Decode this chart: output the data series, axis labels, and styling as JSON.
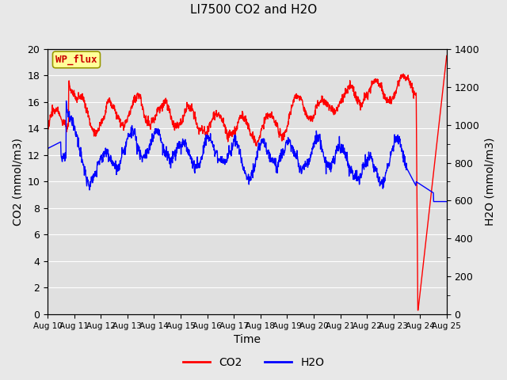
{
  "title": "LI7500 CO2 and H2O",
  "xlabel": "Time",
  "ylabel_left": "CO2 (mmol/m3)",
  "ylabel_right": "H2O (mmol/m3)",
  "ylim_left": [
    0,
    20
  ],
  "ylim_right": [
    0,
    1400
  ],
  "x_tick_labels": [
    "Aug 10",
    "Aug 11",
    "Aug 12",
    "Aug 13",
    "Aug 14",
    "Aug 15",
    "Aug 16",
    "Aug 17",
    "Aug 18",
    "Aug 19",
    "Aug 20",
    "Aug 21",
    "Aug 22",
    "Aug 23",
    "Aug 24",
    "Aug 25"
  ],
  "annotation_text": "WP_flux",
  "annotation_color": "#cc0000",
  "annotation_bg": "#ffff99",
  "annotation_edge": "#999900",
  "co2_color": "#ff0000",
  "h2o_color": "#0000ff",
  "fig_bg": "#e8e8e8",
  "plot_bg": "#e0e0e0",
  "grid_color": "#ffffff",
  "legend_co2": "CO2",
  "legend_h2o": "H2O",
  "linewidth": 1.0,
  "figsize": [
    6.4,
    4.8
  ],
  "dpi": 100
}
